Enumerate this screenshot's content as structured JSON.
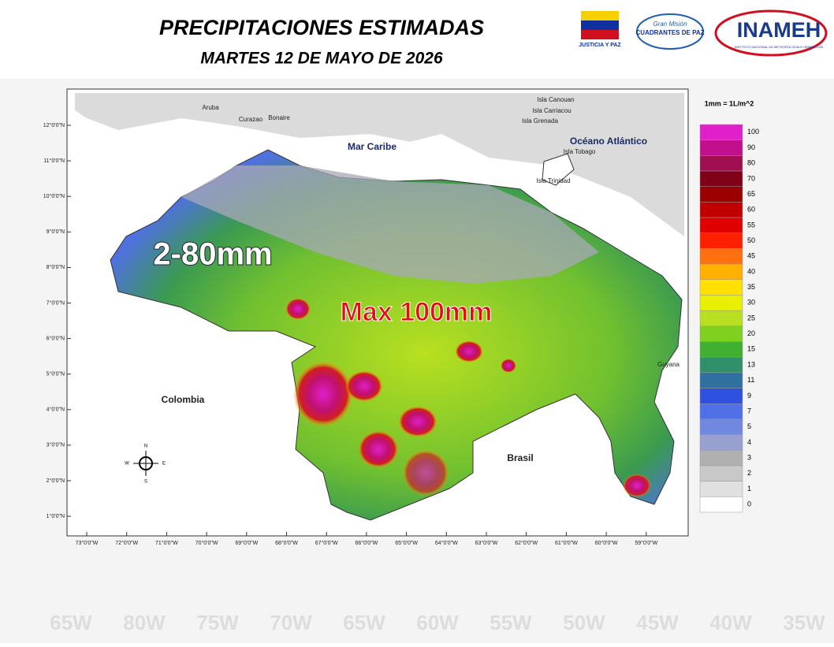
{
  "header": {
    "title": "PRECIPITACIONES ESTIMADAS",
    "subtitle": "MARTES 12 DE MAYO DE 2026",
    "logos": [
      "JUSTICIA Y PAZ",
      "Gran Misión",
      "CUADRANTES DE PAZ",
      "INAMEH",
      "INSTITUTO NACIONAL DE METEOROLOGÍA E HIDROLOGÍA"
    ]
  },
  "map": {
    "labels": {
      "sea": "Mar Caribe",
      "ocean": "Océano Atlántico",
      "colombia": "Colombia",
      "brasil": "Brasil",
      "guyana": "Guyana",
      "aruba": "Aruba",
      "curazao": "Curazao",
      "bonaire": "Bonaire",
      "canouan": "Isla Canouan",
      "carriacou": "Isla Carriacou",
      "grenada": "Isla Grenada",
      "tobago": "Isla Tobago",
      "trinidad": "Isla Trinidad"
    },
    "overlay_range": "2-80mm",
    "overlay_max": "Max 100mm",
    "lat_ticks": [
      "12°0'0\"N",
      "11°0'0\"N",
      "10°0'0\"N",
      "9°0'0\"N",
      "8°0'0\"N",
      "7°0'0\"N",
      "6°0'0\"N",
      "5°0'0\"N",
      "4°0'0\"N",
      "3°0'0\"N",
      "2°0'0\"N",
      "1°0'0\"N"
    ],
    "lon_ticks": [
      "73°0'0\"W",
      "72°0'0\"W",
      "71°0'0\"W",
      "70°0'0\"W",
      "69°0'0\"W",
      "68°0'0\"W",
      "67°0'0\"W",
      "66°0'0\"W",
      "65°0'0\"W",
      "64°0'0\"W",
      "63°0'0\"W",
      "62°0'0\"W",
      "61°0'0\"W",
      "60°0'0\"W",
      "59°0'0\"W"
    ],
    "compass": [
      "N",
      "S",
      "E",
      "W"
    ]
  },
  "legend": {
    "unit": "1mm = 1L/m^2",
    "levels": [
      100,
      90,
      80,
      70,
      65,
      60,
      55,
      50,
      45,
      40,
      35,
      30,
      25,
      20,
      15,
      13,
      11,
      9,
      7,
      5,
      4,
      3,
      2,
      1,
      0
    ],
    "colors": [
      "#e020c8",
      "#c0108e",
      "#a01050",
      "#800018",
      "#9a0000",
      "#c00000",
      "#e00000",
      "#ff2000",
      "#ff7010",
      "#ffb000",
      "#ffe000",
      "#e8f000",
      "#b8e020",
      "#80d020",
      "#40b030",
      "#30906a",
      "#3070a0",
      "#3050e0",
      "#5070e8",
      "#7088e0",
      "#98a0d0",
      "#b0b0b0",
      "#c8c8c8",
      "#e0e0e0",
      "#ffffff"
    ]
  },
  "background": {
    "bottom_ticks": [
      "65W",
      "80W",
      "75W",
      "70W",
      "65W",
      "60W",
      "55W",
      "50W",
      "45W",
      "40W",
      "35W"
    ]
  }
}
